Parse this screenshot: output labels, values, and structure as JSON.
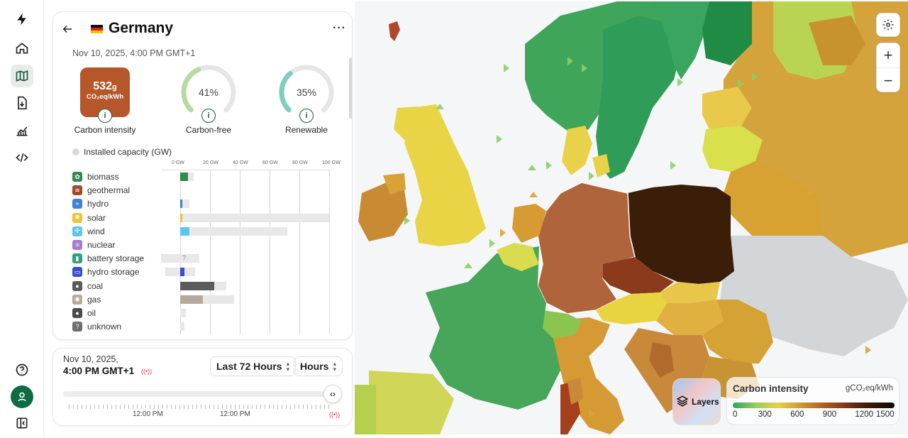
{
  "zone": {
    "name": "Germany",
    "datetime": "Nov 10, 2025, 4:00 PM GMT+1",
    "carbon_intensity_value": "532",
    "carbon_intensity_unit_g": "g",
    "carbon_intensity_unit": "CO₂eq/kWh",
    "carbon_intensity_label": "Carbon intensity",
    "carbon_free_pct": "41%",
    "carbon_free_fraction": 0.41,
    "carbon_free_label": "Carbon-free",
    "renewable_pct": "35%",
    "renewable_fraction": 0.35,
    "renewable_label": "Renewable",
    "installed_capacity_label": "Installed capacity (GW)",
    "axis_ticks": [
      "0 GW",
      "20 GW",
      "40 GW",
      "60 GW",
      "80 GW",
      "100 GW"
    ]
  },
  "sources": [
    {
      "name": "biomass",
      "icon": "leaf-icon",
      "color": "#2f8a4d",
      "production_gw": 5,
      "capacity_gw": 9
    },
    {
      "name": "geothermal",
      "icon": "heat-waves-icon",
      "color": "#a5472a",
      "production_gw": 0,
      "capacity_gw": 0
    },
    {
      "name": "hydro",
      "icon": "water-waves-icon",
      "color": "#3e82d6",
      "production_gw": 1.5,
      "capacity_gw": 6
    },
    {
      "name": "solar",
      "icon": "sun-icon",
      "color": "#f2c230",
      "production_gw": 1.5,
      "capacity_gw": 100
    },
    {
      "name": "wind",
      "icon": "wind-turbine-icon",
      "color": "#5bc7ef",
      "production_gw": 6,
      "capacity_gw": 72
    },
    {
      "name": "nuclear",
      "icon": "atom-icon",
      "color": "#a777d6",
      "production_gw": 0,
      "capacity_gw": 0
    },
    {
      "name": "battery storage",
      "icon": "battery-icon",
      "color": "#2aa37a",
      "production_gw": 0,
      "capacity_gw": 13,
      "capacity_neg_gw": -13,
      "unknown_marker": "?"
    },
    {
      "name": "hydro storage",
      "icon": "dam-icon",
      "color": "#3a4fd0",
      "production_gw": 3,
      "capacity_gw": 10,
      "capacity_neg_gw": -10
    },
    {
      "name": "coal",
      "icon": "coal-icon",
      "color": "#5b5b5b",
      "production_gw": 23,
      "capacity_gw": 31
    },
    {
      "name": "gas",
      "icon": "gas-flame-icon",
      "color": "#b5a99a",
      "production_gw": 15,
      "capacity_gw": 36
    },
    {
      "name": "oil",
      "icon": "oil-drop-icon",
      "color": "#4a4a4a",
      "production_gw": 0,
      "capacity_gw": 4
    },
    {
      "name": "unknown",
      "icon": "question-icon",
      "color": "#6e6e6e",
      "production_gw": 0,
      "capacity_gw": 3
    }
  ],
  "time_controller": {
    "date": "Nov 10, 2025,",
    "time": "4:00 PM GMT+1",
    "range_select": "Last 72 Hours",
    "resolution_select": "Hours",
    "tick_labels": [
      "12:00 PM",
      "12:00 PM"
    ],
    "position_fraction": 1.0
  },
  "map": {
    "legend_title": "Carbon intensity",
    "legend_unit": "gCO₂eq/kWh",
    "legend_ticks": [
      "0",
      "300",
      "600",
      "900",
      "1200",
      "1500"
    ],
    "layers_label": "Layers",
    "zoom_in": "+",
    "zoom_out": "−"
  },
  "colors": {
    "accent": "#0f6b44",
    "carbon_free_ring": "#b7d9a2",
    "renewable_ring": "#7fcfc0",
    "live_red": "#d63b3b"
  }
}
